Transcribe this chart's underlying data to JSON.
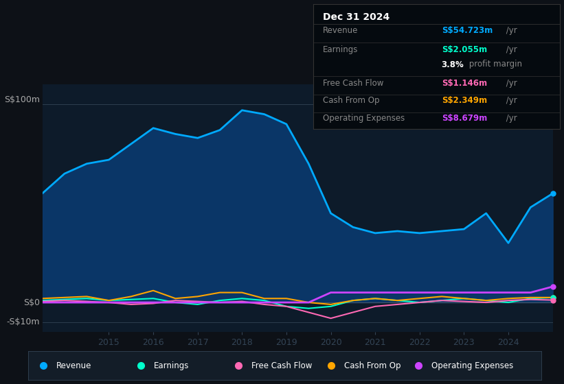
{
  "background_color": "#0d1117",
  "plot_bg_color": "#0d1b2a",
  "title_box": {
    "date": "Dec 31 2024",
    "rows": [
      {
        "label": "Revenue",
        "value": "S$54.723m",
        "suffix": " /yr",
        "color": "#00aaff"
      },
      {
        "label": "Earnings",
        "value": "S$2.055m",
        "suffix": " /yr",
        "color": "#00ffcc"
      },
      {
        "label": "",
        "value": "3.8%",
        "suffix": " profit margin",
        "color": "#ffffff"
      },
      {
        "label": "Free Cash Flow",
        "value": "S$1.146m",
        "suffix": " /yr",
        "color": "#ff69b4"
      },
      {
        "label": "Cash From Op",
        "value": "S$2.349m",
        "suffix": " /yr",
        "color": "#ffa500"
      },
      {
        "label": "Operating Expenses",
        "value": "S$8.679m",
        "suffix": " /yr",
        "color": "#cc44ff"
      }
    ]
  },
  "ylabel_top": "S$100m",
  "ylabel_zero": "S$0",
  "ylabel_neg": "-S$10m",
  "years": [
    2013.5,
    2014,
    2014.5,
    2015,
    2015.5,
    2016,
    2016.5,
    2017,
    2017.5,
    2018,
    2018.5,
    2019,
    2019.5,
    2020,
    2020.5,
    2021,
    2021.5,
    2022,
    2022.5,
    2023,
    2023.5,
    2024,
    2024.5,
    2025
  ],
  "revenue": [
    55,
    65,
    70,
    72,
    80,
    88,
    85,
    83,
    87,
    97,
    95,
    90,
    70,
    45,
    38,
    35,
    36,
    35,
    36,
    37,
    45,
    30,
    48,
    55
  ],
  "earnings": [
    1,
    1.5,
    2,
    1,
    1.5,
    2,
    0,
    -1,
    1,
    2,
    1,
    -2,
    -3,
    -2,
    1,
    2,
    1,
    0,
    1,
    2,
    1,
    0,
    2,
    2.5
  ],
  "free_cash_flow": [
    0.5,
    1,
    0.5,
    0,
    -1,
    -0.5,
    1,
    0.5,
    0,
    0.5,
    -1,
    -2,
    -5,
    -8,
    -5,
    -2,
    -1,
    0,
    1,
    0.5,
    0,
    1,
    1.5,
    1.2
  ],
  "cash_from_op": [
    2,
    2.5,
    3,
    1,
    3,
    6,
    2,
    3,
    5,
    5,
    2,
    2,
    0,
    -1,
    1,
    2,
    1,
    2,
    3,
    2,
    1,
    2,
    2.5,
    2.5
  ],
  "operating_expenses": [
    0,
    0,
    0,
    0,
    0,
    0,
    0,
    0,
    0,
    0,
    0,
    0,
    0,
    5,
    5,
    5,
    5,
    5,
    5,
    5,
    5,
    5,
    5,
    8
  ],
  "revenue_color": "#00aaff",
  "earnings_color": "#00ffcc",
  "free_cash_flow_color": "#ff69b4",
  "cash_from_op_color": "#ffa500",
  "operating_expenses_color": "#cc44ff",
  "revenue_fill_color": "#0a3a6e",
  "x_ticks": [
    2015,
    2016,
    2017,
    2018,
    2019,
    2020,
    2021,
    2022,
    2023,
    2024
  ],
  "ylim": [
    -15,
    110
  ],
  "divider_color": "#333333",
  "legend_items": [
    {
      "label": "Revenue",
      "color": "#00aaff"
    },
    {
      "label": "Earnings",
      "color": "#00ffcc"
    },
    {
      "label": "Free Cash Flow",
      "color": "#ff69b4"
    },
    {
      "label": "Cash From Op",
      "color": "#ffa500"
    },
    {
      "label": "Operating Expenses",
      "color": "#cc44ff"
    }
  ]
}
